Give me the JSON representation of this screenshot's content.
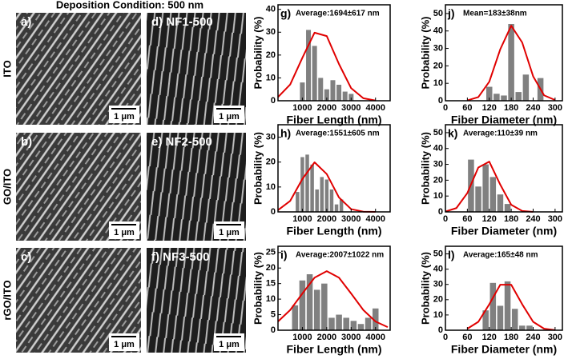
{
  "figure": {
    "title": "Deposition Condition: 500 nm",
    "rows": [
      {
        "label": "ITO",
        "left_label": "a)",
        "right_label": "d) NF1-500",
        "left_scale": "1 μm",
        "right_scale": "1 μm"
      },
      {
        "label": "GO/ITO",
        "left_label": "b)",
        "right_label": "e) NF2-500",
        "left_scale": "1 μm",
        "right_scale": "1 μm"
      },
      {
        "label": "rGO/ITO",
        "left_label": "c)",
        "right_label": "f) NF3-500",
        "left_scale": "1 μm",
        "right_scale": "1 μm"
      }
    ]
  },
  "chart_data": [
    {
      "type": "histogram",
      "panel_label": "g)",
      "annotation": "Average:1694±617 nm",
      "xlabel": "Fiber Length (nm)",
      "ylabel": "Probability (%)",
      "bins": [
        875,
        1125,
        1375,
        1625,
        1875,
        2125,
        2375,
        2625,
        2875,
        3125
      ],
      "values": [
        8,
        31,
        24,
        10,
        5,
        9,
        7,
        4,
        3
      ],
      "color": "#808080",
      "fit": {
        "x": [
          0,
          500,
          1000,
          1500,
          2000,
          2500,
          3000,
          3500,
          4000
        ],
        "values": [
          1.6,
          7.1,
          18.8,
          29.8,
          28.3,
          16.1,
          5.5,
          1.1,
          0.1
        ],
        "color": "#e00000"
      },
      "xlim": [
        0,
        4600
      ],
      "ylim": [
        0,
        42
      ],
      "xticks": [
        1000,
        2000,
        3000,
        4000
      ],
      "yticks": [
        0,
        10,
        20,
        30,
        40
      ]
    },
    {
      "type": "histogram",
      "panel_label": "j)",
      "annotation": "Mean=183±38nm",
      "xlabel": "Fiber Diameter (nm)",
      "ylabel": "Probability (%)",
      "bins": [
        110,
        130,
        150,
        170,
        190,
        210,
        230,
        250,
        270
      ],
      "values": [
        8,
        4,
        3,
        44,
        5,
        15,
        0,
        13
      ],
      "color": "#808080",
      "fit": {
        "x": [
          60,
          90,
          120,
          150,
          180,
          210,
          240,
          270,
          300
        ],
        "values": [
          0.2,
          2.1,
          10.9,
          29.5,
          43,
          33.4,
          14,
          3.1,
          0.4
        ],
        "color": "#e00000"
      },
      "xlim": [
        0,
        320
      ],
      "ylim": [
        0,
        55
      ],
      "xticks": [
        0,
        60,
        120,
        180,
        240,
        300
      ],
      "yticks": [
        0,
        10,
        20,
        30,
        40,
        50
      ]
    },
    {
      "type": "histogram",
      "panel_label": "h)",
      "annotation": "Average:1551±605 nm",
      "xlabel": "Fiber Length (nm)",
      "ylabel": "Probability (%)",
      "bins": [
        700,
        900,
        1100,
        1300,
        1500,
        1700,
        1900,
        2100,
        2300,
        2500,
        2700
      ],
      "values": [
        8,
        22,
        23,
        19,
        9,
        14,
        13,
        9,
        3,
        5
      ],
      "color": "#808080",
      "fit": {
        "x": [
          0,
          500,
          1000,
          1500,
          2000,
          2500,
          3000,
          3500,
          4000
        ],
        "values": [
          0.7,
          4.4,
          13.2,
          19.9,
          15.2,
          5.8,
          1.1,
          0.1,
          0
        ],
        "color": "#e00000"
      },
      "xlim": [
        0,
        4600
      ],
      "ylim": [
        0,
        35
      ],
      "xticks": [
        1000,
        2000,
        3000,
        4000
      ],
      "yticks": [
        0,
        10,
        20,
        30
      ]
    },
    {
      "type": "histogram",
      "panel_label": "k)",
      "annotation": "Average:110±39 nm",
      "xlabel": "Fiber Diameter (nm)",
      "ylabel": "Probability (%)",
      "bins": [
        60,
        80,
        100,
        120,
        140,
        160,
        180
      ],
      "values": [
        33,
        16,
        30,
        22,
        11,
        5
      ],
      "color": "#808080",
      "fit": {
        "x": [
          0,
          30,
          60,
          90,
          120,
          150,
          180,
          210,
          240
        ],
        "values": [
          0.2,
          2.4,
          11.9,
          28,
          31.7,
          17.2,
          4.5,
          0.6,
          0
        ],
        "color": "#e00000"
      },
      "xlim": [
        0,
        320
      ],
      "ylim": [
        0,
        55
      ],
      "xticks": [
        0,
        60,
        120,
        180,
        240,
        300
      ],
      "yticks": [
        0,
        10,
        20,
        30,
        40,
        50
      ]
    },
    {
      "type": "histogram",
      "panel_label": "i)",
      "annotation": "Average:2007±1022 nm",
      "xlabel": "Fiber Length (nm)",
      "ylabel": "Probability (%)",
      "bins": [
        550,
        850,
        1150,
        1450,
        1750,
        2050,
        2350,
        2650,
        2950,
        3250,
        3550,
        3850,
        4150
      ],
      "values": [
        8,
        16,
        18,
        13,
        15,
        4,
        5,
        4,
        3,
        2,
        4,
        7
      ],
      "color": "#808080",
      "fit": {
        "x": [
          0,
          500,
          1000,
          1500,
          2000,
          2500,
          3000,
          3500,
          4000,
          4500
        ],
        "values": [
          2.8,
          6.5,
          11.8,
          16.9,
          19,
          16.9,
          11.8,
          6.5,
          2.8,
          1
        ],
        "color": "#e00000"
      },
      "xlim": [
        0,
        4600
      ],
      "ylim": [
        0,
        27
      ],
      "xticks": [
        1000,
        2000,
        3000,
        4000
      ],
      "yticks": [
        0,
        5,
        10,
        15,
        20,
        25
      ]
    },
    {
      "type": "histogram",
      "panel_label": "l)",
      "annotation": "Average:165±48 nm",
      "xlabel": "Fiber Diameter (nm)",
      "ylabel": "Probability (%)",
      "bins": [
        100,
        120,
        140,
        160,
        180,
        200,
        220,
        240
      ],
      "values": [
        13,
        31,
        16,
        32,
        14,
        3,
        3
      ],
      "color": "#808080",
      "fit": {
        "x": [
          60,
          90,
          120,
          150,
          180,
          210,
          240,
          270,
          300
        ],
        "values": [
          1,
          5.5,
          17,
          29.8,
          29.8,
          17,
          5.5,
          1,
          0.1
        ],
        "color": "#e00000"
      },
      "xlim": [
        0,
        320
      ],
      "ylim": [
        0,
        55
      ],
      "xticks": [
        0,
        60,
        120,
        180,
        240,
        300
      ],
      "yticks": [
        0,
        10,
        20,
        30,
        40,
        50
      ]
    }
  ]
}
